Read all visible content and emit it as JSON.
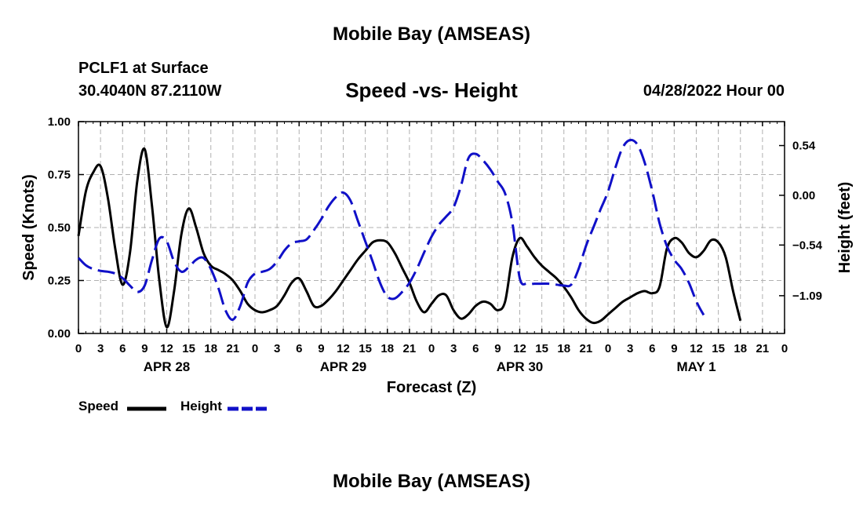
{
  "header": {
    "title": "Mobile Bay (AMSEAS)",
    "station": "PCLF1 at Surface",
    "coordinates": "30.4040N  87.2110W",
    "chart_title": "Speed -vs- Height",
    "datetime": "04/28/2022 Hour 00"
  },
  "footer": {
    "title": "Mobile Bay (AMSEAS)"
  },
  "colors": {
    "speed": "#000000",
    "height": "#1010c8",
    "grid": "#b0b0b0"
  },
  "chart_data": {
    "type": "line",
    "xlabel": "Forecast (Z)",
    "ylabel_left": "Speed (Knots)",
    "ylabel_right": "Height (feet)",
    "xlim": [
      0,
      96
    ],
    "ylim_left": [
      0,
      1.0
    ],
    "ylim_right": [
      -1.5,
      0.8
    ],
    "x_tick_labels": [
      "0",
      "3",
      "6",
      "9",
      "12",
      "15",
      "18",
      "21",
      "0",
      "3",
      "6",
      "9",
      "12",
      "15",
      "18",
      "21",
      "0",
      "3",
      "6",
      "9",
      "12",
      "15",
      "18",
      "21",
      "0",
      "3",
      "6",
      "9",
      "12",
      "15",
      "18",
      "21",
      "0"
    ],
    "left_tick_labels": [
      "1.00",
      "0.75",
      "0.50",
      "0.25",
      "0.00"
    ],
    "left_tick_values": [
      1.0,
      0.75,
      0.5,
      0.25,
      0.0
    ],
    "right_tick_labels": [
      "0.54",
      "0.00",
      "−0.54",
      "−1.09"
    ],
    "right_tick_values": [
      0.54,
      0.0,
      -0.54,
      -1.09
    ],
    "day_labels": [
      {
        "label": "APR 28",
        "x": 12
      },
      {
        "label": "APR 29",
        "x": 36
      },
      {
        "label": "APR 30",
        "x": 60
      },
      {
        "label": "MAY 1",
        "x": 84
      }
    ],
    "grid": true,
    "legend_position": "bottom-left",
    "series": [
      {
        "name": "Speed",
        "axis": "left",
        "style": "solid",
        "points": [
          [
            0,
            0.46
          ],
          [
            1,
            0.67
          ],
          [
            2,
            0.76
          ],
          [
            3,
            0.79
          ],
          [
            4,
            0.64
          ],
          [
            5,
            0.4
          ],
          [
            6,
            0.23
          ],
          [
            7,
            0.38
          ],
          [
            8,
            0.72
          ],
          [
            9,
            0.87
          ],
          [
            10,
            0.6
          ],
          [
            11,
            0.25
          ],
          [
            12,
            0.03
          ],
          [
            13,
            0.2
          ],
          [
            14,
            0.47
          ],
          [
            15,
            0.59
          ],
          [
            16,
            0.5
          ],
          [
            17,
            0.38
          ],
          [
            18,
            0.32
          ],
          [
            19,
            0.3
          ],
          [
            20,
            0.28
          ],
          [
            21,
            0.25
          ],
          [
            22,
            0.2
          ],
          [
            23,
            0.14
          ],
          [
            24,
            0.11
          ],
          [
            25,
            0.1
          ],
          [
            26,
            0.11
          ],
          [
            27,
            0.13
          ],
          [
            28,
            0.18
          ],
          [
            29,
            0.24
          ],
          [
            30,
            0.26
          ],
          [
            31,
            0.2
          ],
          [
            32,
            0.13
          ],
          [
            33,
            0.13
          ],
          [
            34,
            0.16
          ],
          [
            35,
            0.2
          ],
          [
            36,
            0.25
          ],
          [
            37,
            0.3
          ],
          [
            38,
            0.35
          ],
          [
            39,
            0.39
          ],
          [
            40,
            0.43
          ],
          [
            41,
            0.44
          ],
          [
            42,
            0.43
          ],
          [
            43,
            0.38
          ],
          [
            44,
            0.31
          ],
          [
            45,
            0.24
          ],
          [
            46,
            0.15
          ],
          [
            47,
            0.1
          ],
          [
            48,
            0.14
          ],
          [
            49,
            0.18
          ],
          [
            50,
            0.18
          ],
          [
            51,
            0.11
          ],
          [
            52,
            0.07
          ],
          [
            53,
            0.09
          ],
          [
            54,
            0.13
          ],
          [
            55,
            0.15
          ],
          [
            56,
            0.14
          ],
          [
            57,
            0.11
          ],
          [
            58,
            0.15
          ],
          [
            59,
            0.36
          ],
          [
            60,
            0.45
          ],
          [
            61,
            0.41
          ],
          [
            62,
            0.36
          ],
          [
            63,
            0.32
          ],
          [
            64,
            0.29
          ],
          [
            65,
            0.26
          ],
          [
            66,
            0.22
          ],
          [
            67,
            0.17
          ],
          [
            68,
            0.11
          ],
          [
            69,
            0.07
          ],
          [
            70,
            0.05
          ],
          [
            71,
            0.06
          ],
          [
            72,
            0.09
          ],
          [
            73,
            0.12
          ],
          [
            74,
            0.15
          ],
          [
            75,
            0.17
          ],
          [
            76,
            0.19
          ],
          [
            77,
            0.2
          ],
          [
            78,
            0.19
          ],
          [
            79,
            0.22
          ],
          [
            80,
            0.4
          ],
          [
            81,
            0.45
          ],
          [
            82,
            0.43
          ],
          [
            83,
            0.38
          ],
          [
            84,
            0.36
          ],
          [
            85,
            0.39
          ],
          [
            86,
            0.44
          ],
          [
            87,
            0.43
          ],
          [
            88,
            0.36
          ],
          [
            89,
            0.2
          ],
          [
            90,
            0.06
          ]
        ]
      },
      {
        "name": "Height",
        "axis": "right",
        "style": "dashed",
        "points": [
          [
            0,
            -0.68
          ],
          [
            1,
            -0.76
          ],
          [
            2,
            -0.8
          ],
          [
            3,
            -0.82
          ],
          [
            4,
            -0.83
          ],
          [
            5,
            -0.85
          ],
          [
            6,
            -0.9
          ],
          [
            7,
            -0.98
          ],
          [
            8,
            -1.05
          ],
          [
            9,
            -0.98
          ],
          [
            10,
            -0.7
          ],
          [
            11,
            -0.47
          ],
          [
            12,
            -0.5
          ],
          [
            13,
            -0.72
          ],
          [
            14,
            -0.83
          ],
          [
            15,
            -0.78
          ],
          [
            16,
            -0.7
          ],
          [
            17,
            -0.68
          ],
          [
            18,
            -0.8
          ],
          [
            19,
            -1.0
          ],
          [
            20,
            -1.25
          ],
          [
            21,
            -1.35
          ],
          [
            22,
            -1.2
          ],
          [
            23,
            -0.95
          ],
          [
            24,
            -0.85
          ],
          [
            25,
            -0.83
          ],
          [
            26,
            -0.8
          ],
          [
            27,
            -0.72
          ],
          [
            28,
            -0.6
          ],
          [
            29,
            -0.52
          ],
          [
            30,
            -0.5
          ],
          [
            31,
            -0.48
          ],
          [
            32,
            -0.38
          ],
          [
            33,
            -0.26
          ],
          [
            34,
            -0.12
          ],
          [
            35,
            -0.02
          ],
          [
            36,
            0.03
          ],
          [
            37,
            -0.06
          ],
          [
            38,
            -0.28
          ],
          [
            39,
            -0.5
          ],
          [
            40,
            -0.72
          ],
          [
            41,
            -0.95
          ],
          [
            42,
            -1.1
          ],
          [
            43,
            -1.12
          ],
          [
            44,
            -1.05
          ],
          [
            45,
            -0.95
          ],
          [
            46,
            -0.8
          ],
          [
            47,
            -0.62
          ],
          [
            48,
            -0.45
          ],
          [
            49,
            -0.32
          ],
          [
            50,
            -0.23
          ],
          [
            51,
            -0.13
          ],
          [
            52,
            0.1
          ],
          [
            53,
            0.4
          ],
          [
            54,
            0.45
          ],
          [
            55,
            0.38
          ],
          [
            56,
            0.28
          ],
          [
            57,
            0.15
          ],
          [
            58,
            0.02
          ],
          [
            59,
            -0.3
          ],
          [
            60,
            -0.9
          ],
          [
            61,
            -0.96
          ],
          [
            62,
            -0.96
          ],
          [
            63,
            -0.96
          ],
          [
            64,
            -0.96
          ],
          [
            65,
            -0.97
          ],
          [
            66,
            -0.98
          ],
          [
            67,
            -0.97
          ],
          [
            68,
            -0.8
          ],
          [
            69,
            -0.55
          ],
          [
            70,
            -0.35
          ],
          [
            71,
            -0.15
          ],
          [
            72,
            0.04
          ],
          [
            73,
            0.3
          ],
          [
            74,
            0.52
          ],
          [
            75,
            0.6
          ],
          [
            76,
            0.55
          ],
          [
            77,
            0.35
          ],
          [
            78,
            0.05
          ],
          [
            79,
            -0.3
          ],
          [
            80,
            -0.55
          ],
          [
            81,
            -0.7
          ],
          [
            82,
            -0.8
          ],
          [
            83,
            -0.95
          ],
          [
            84,
            -1.15
          ],
          [
            85,
            -1.3
          ]
        ]
      }
    ]
  }
}
